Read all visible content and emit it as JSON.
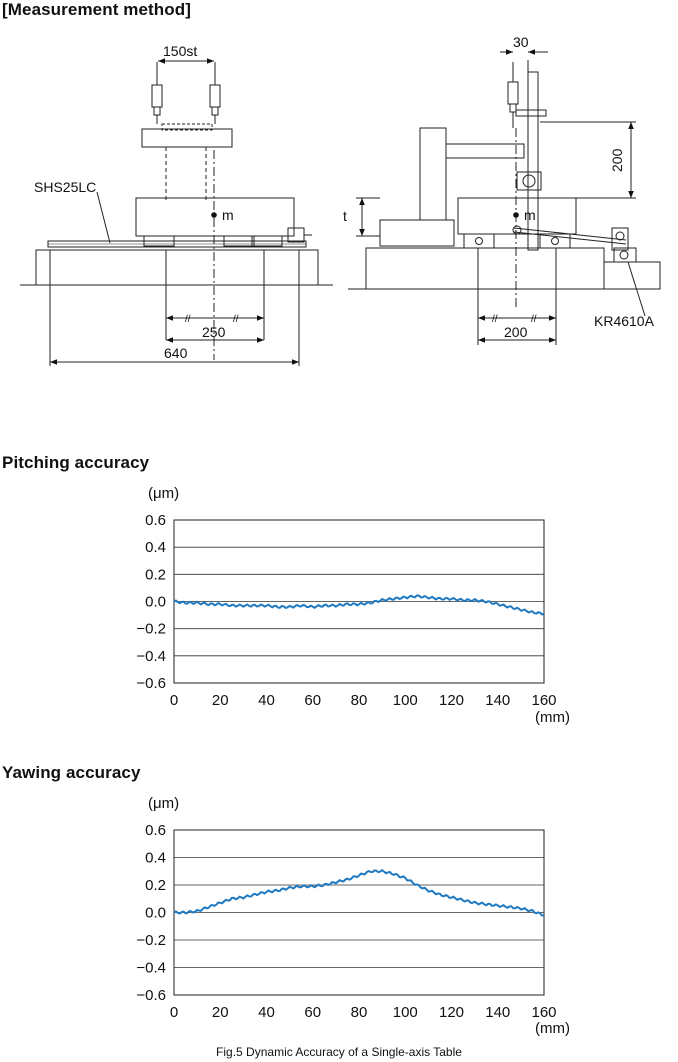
{
  "diagram": {
    "heading": "[Measurement method]",
    "labels": {
      "stroke": "150st",
      "model": "SHS25LC",
      "mass": "m",
      "mass_right": "m",
      "offset": "30",
      "height": "200",
      "thickness": "t",
      "dim_250": "250",
      "dim_640": "640",
      "dim_200": "200",
      "bearing": "KR4610A",
      "equal_a": "//",
      "equal_b": "//",
      "equal_c": "//",
      "equal_d": "//"
    }
  },
  "charts": [
    {
      "heading": "Pitching accuracy",
      "unit_y": "(μm)",
      "unit_x": "(mm)"
    },
    {
      "heading": "Yawing accuracy",
      "unit_y": "(μm)",
      "unit_x": "(mm)"
    }
  ],
  "chart_data": [
    {
      "type": "line",
      "title": "Pitching accuracy",
      "xlabel": "(mm)",
      "ylabel": "(μm)",
      "xlim": [
        0,
        160
      ],
      "ylim": [
        -0.6,
        0.6
      ],
      "xticks": [
        "0",
        "20",
        "40",
        "60",
        "80",
        "100",
        "120",
        "140",
        "160"
      ],
      "yticks": [
        "0.6",
        "0.4",
        "0.2",
        "0.0",
        "−0.2",
        "−0.4",
        "−0.6"
      ],
      "grid": "horizontal",
      "series_color": "#1f7ac2",
      "x": [
        0,
        5,
        10,
        15,
        20,
        25,
        30,
        35,
        40,
        45,
        50,
        55,
        60,
        65,
        70,
        75,
        80,
        85,
        90,
        95,
        100,
        105,
        110,
        115,
        120,
        125,
        130,
        135,
        140,
        145,
        150,
        155,
        160
      ],
      "y": [
        0.0,
        -0.01,
        -0.01,
        -0.02,
        -0.02,
        -0.03,
        -0.03,
        -0.03,
        -0.03,
        -0.04,
        -0.04,
        -0.03,
        -0.04,
        -0.03,
        -0.03,
        -0.02,
        -0.02,
        -0.01,
        0.01,
        0.02,
        0.03,
        0.04,
        0.03,
        0.02,
        0.02,
        0.01,
        0.01,
        0.0,
        -0.02,
        -0.04,
        -0.06,
        -0.08,
        -0.09
      ]
    },
    {
      "type": "line",
      "title": "Yawing accuracy",
      "xlabel": "(mm)",
      "ylabel": "(μm)",
      "xlim": [
        0,
        160
      ],
      "ylim": [
        -0.6,
        0.6
      ],
      "xticks": [
        "0",
        "20",
        "40",
        "60",
        "80",
        "100",
        "120",
        "140",
        "160"
      ],
      "yticks": [
        "0.6",
        "0.4",
        "0.2",
        "0.0",
        "−0.2",
        "−0.4",
        "−0.6"
      ],
      "grid": "horizontal",
      "series_color": "#1f7ac2",
      "x": [
        0,
        5,
        10,
        15,
        20,
        25,
        30,
        35,
        40,
        45,
        50,
        55,
        60,
        65,
        70,
        75,
        80,
        85,
        90,
        95,
        100,
        105,
        110,
        115,
        120,
        125,
        130,
        135,
        140,
        145,
        150,
        155,
        160
      ],
      "y": [
        0.0,
        0.0,
        0.01,
        0.04,
        0.07,
        0.1,
        0.11,
        0.13,
        0.15,
        0.16,
        0.18,
        0.19,
        0.19,
        0.2,
        0.22,
        0.24,
        0.27,
        0.3,
        0.3,
        0.28,
        0.25,
        0.2,
        0.16,
        0.13,
        0.11,
        0.09,
        0.07,
        0.06,
        0.05,
        0.04,
        0.03,
        0.01,
        -0.02
      ]
    }
  ],
  "caption": "Fig.5 Dynamic Accuracy of a Single-axis Table"
}
